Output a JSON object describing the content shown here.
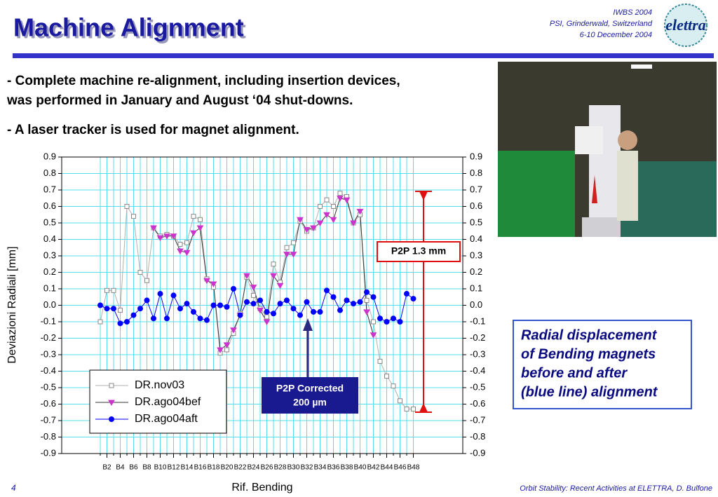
{
  "header": {
    "title": "Machine Alignment",
    "conference": [
      "IWBS 2004",
      "PSI, Grinderwald, Switzerland",
      "6-10 December 2004"
    ],
    "logo": "elettra"
  },
  "bullets": [
    [
      "- Complete machine re-alignment, including insertion devices,",
      "was performed in January and August ‘04 shut-downs."
    ],
    [
      "- A laser tracker is used for magnet alignment."
    ]
  ],
  "caption": [
    "Radial displacement",
    "of Bending magnets",
    "before and after",
    "(blue line) alignment"
  ],
  "footer": {
    "page": "4",
    "text": "Orbit Stability: Recent Activities at ELETTRA, D. Bulfone"
  },
  "chart_data": {
    "type": "line",
    "x_label": "Rif. Bending",
    "y_label": "Deviazioni Radiali [mm]",
    "annotations": [
      "P2P 1.3 mm",
      "P2P Corrected",
      "200 µm"
    ],
    "categories": [
      null,
      "B2",
      null,
      "B4",
      null,
      "B6",
      null,
      "B8",
      null,
      "B10",
      null,
      "B12",
      null,
      "B14",
      null,
      "B16",
      null,
      "B18",
      null,
      "B20",
      null,
      "B22",
      null,
      "B24",
      null,
      "B26",
      null,
      "B28",
      null,
      "B30",
      null,
      "B32",
      null,
      "B34",
      null,
      "B36",
      null,
      "B38",
      null,
      "B40",
      null,
      "B42",
      null,
      "B44",
      null,
      "B46",
      null,
      "B48"
    ],
    "ylim": [
      -0.9,
      0.9
    ],
    "yticks": [
      -0.9,
      -0.8,
      -0.7,
      -0.6,
      -0.5,
      -0.4,
      -0.3,
      -0.2,
      -0.1,
      {
        "value": 0,
        "label": "0.0"
      },
      0.1,
      0.2,
      0.3,
      0.4,
      0.5,
      0.6,
      0.7,
      0.8,
      0.9
    ],
    "grid": true,
    "legend": "lower left",
    "series": [
      {
        "name": "DR.nov03",
        "color": "#ffffff",
        "line_color": "#b0b0b0",
        "marker": "square",
        "values": [
          -0.1,
          0.09,
          0.09,
          -0.03,
          0.6,
          0.54,
          0.2,
          0.15,
          0.47,
          0.42,
          0.43,
          0.42,
          0.37,
          0.38,
          0.54,
          0.52,
          0.16,
          0.11,
          -0.29,
          -0.27,
          -0.17,
          -0.05,
          0.17,
          0.06,
          -0.02,
          -0.07,
          0.25,
          0.14,
          0.35,
          0.38,
          0.51,
          0.45,
          0.47,
          0.6,
          0.64,
          0.6,
          0.68,
          0.66,
          0.5,
          0.55,
          0.03,
          -0.1,
          -0.34,
          -0.43,
          -0.49,
          -0.58,
          -0.63,
          -0.63
        ]
      },
      {
        "name": "DR.ago04bef",
        "color": "#cc33cc",
        "line_color": "#333333",
        "marker": "triangle",
        "values": [
          null,
          null,
          null,
          null,
          null,
          null,
          null,
          null,
          0.47,
          0.41,
          0.42,
          0.42,
          0.33,
          0.32,
          0.44,
          0.47,
          0.15,
          0.13,
          -0.27,
          -0.24,
          -0.15,
          -0.06,
          0.18,
          0.11,
          -0.03,
          -0.1,
          0.18,
          0.12,
          0.31,
          0.31,
          0.52,
          0.46,
          0.47,
          0.5,
          0.55,
          0.52,
          0.65,
          0.64,
          0.5,
          0.57,
          -0.04,
          -0.18,
          null,
          null,
          null,
          null,
          null,
          null
        ]
      },
      {
        "name": "DR.ago04aft",
        "color": "#0000ff",
        "line_color": "#0000ff",
        "marker": "circle",
        "values": [
          0.0,
          -0.02,
          -0.02,
          -0.11,
          -0.1,
          -0.06,
          -0.02,
          0.03,
          -0.08,
          0.07,
          -0.08,
          0.06,
          -0.02,
          0.01,
          -0.04,
          -0.08,
          -0.09,
          0.0,
          0.0,
          -0.01,
          0.1,
          -0.06,
          0.02,
          0.01,
          0.03,
          -0.04,
          -0.05,
          0.01,
          0.03,
          -0.02,
          -0.06,
          0.02,
          -0.04,
          -0.04,
          0.09,
          0.05,
          -0.03,
          0.03,
          0.01,
          0.02,
          0.08,
          0.05,
          -0.08,
          -0.1,
          -0.08,
          -0.1,
          0.07,
          0.04
        ]
      }
    ]
  }
}
